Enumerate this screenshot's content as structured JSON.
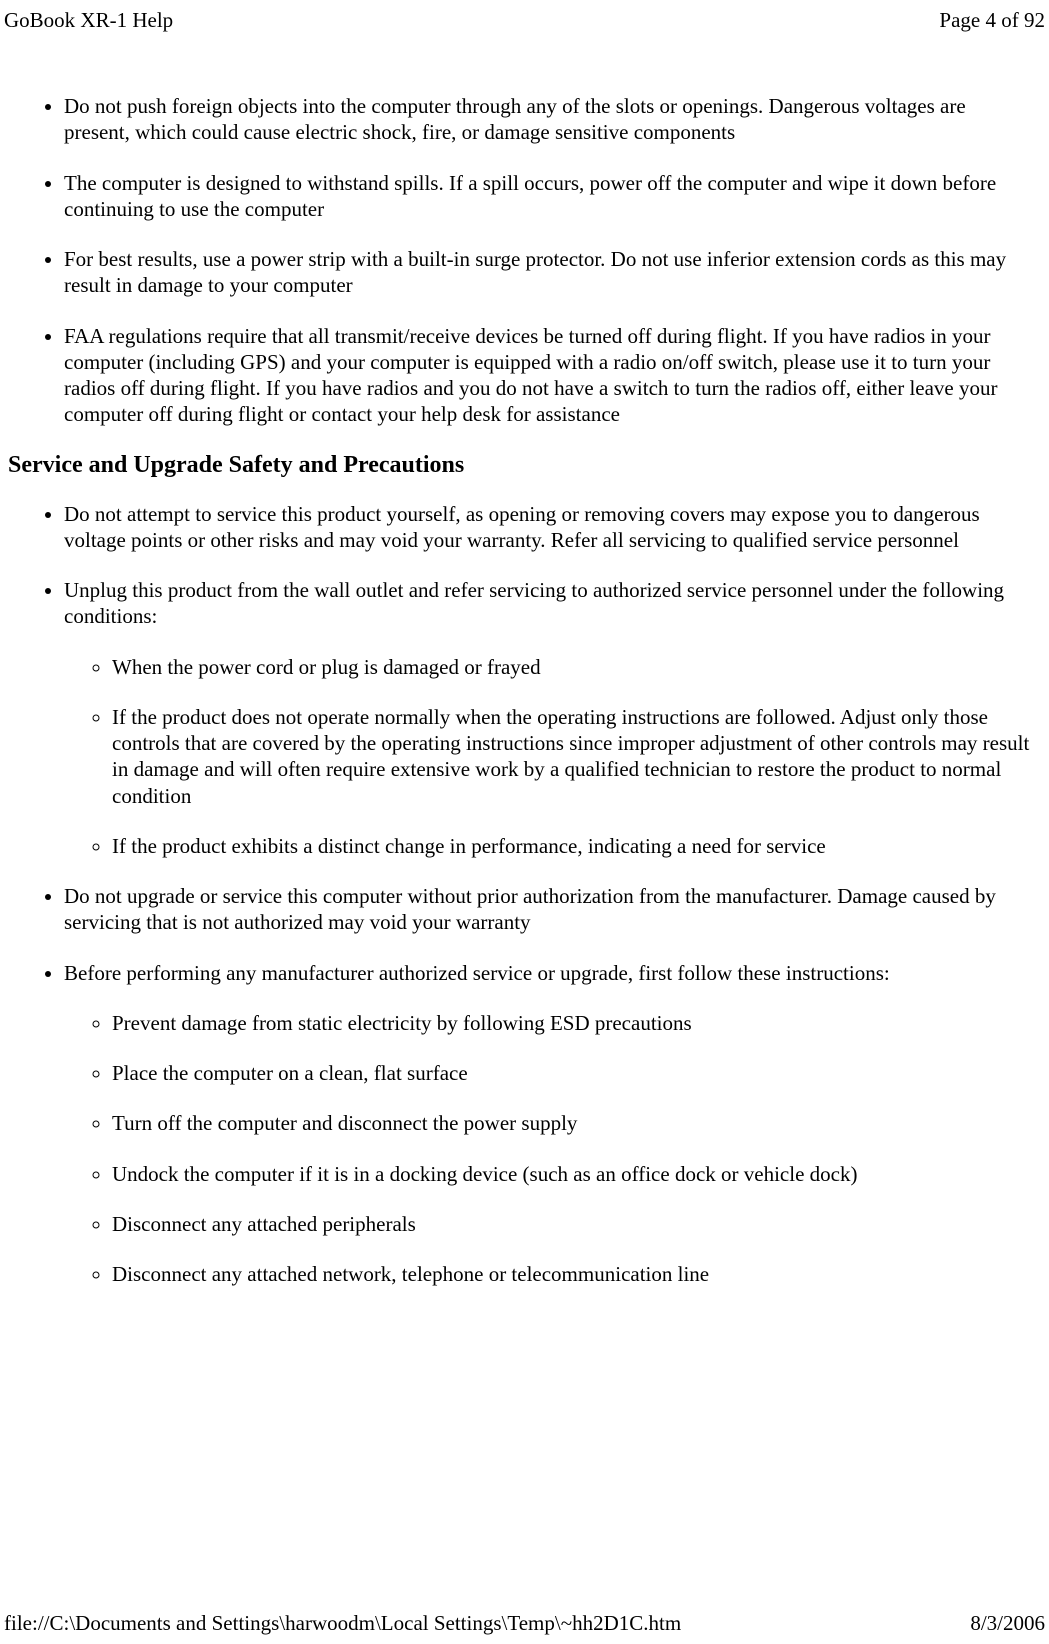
{
  "header": {
    "title": "GoBook XR-1 Help",
    "page_indicator": "Page 4 of 92"
  },
  "section1": {
    "items": [
      "Do not push foreign objects into the computer through any of the slots or openings. Dangerous voltages are present, which could cause electric shock,  fire, or damage sensitive components",
      "The computer is designed to withstand spills. If a spill occurs, power off the computer and wipe it down before continuing to use the computer",
      "For best results, use a power strip with a built-in surge protector. Do not use inferior extension cords as this may result in damage to your computer",
      "FAA regulations require that all transmit/receive devices be turned off during flight.  If you have radios in your computer (including GPS) and your computer is equipped with a radio on/off switch, please use it to turn your radios off during flight.  If you have radios and you do not have a switch to turn the radios off, either leave your computer off during flight or contact your help desk for assistance"
    ]
  },
  "section2": {
    "heading": "Service and Upgrade Safety and Precautions",
    "item1": "Do not attempt to service this product yourself, as opening or removing covers may expose you to dangerous voltage points or other risks and may void your warranty. Refer all servicing to qualified service personnel",
    "item2": "Unplug this product from the wall outlet and refer servicing to authorized service personnel under the following conditions:",
    "item2_sub": [
      "When the power cord or plug is damaged or frayed",
      "If the product does not operate normally when the operating instructions are followed. Adjust only those controls that are covered by the operating instructions since improper adjustment of other controls may result in damage and will often require extensive work by a qualified technician to restore the product to normal condition",
      "If the product exhibits a distinct change in performance, indicating a need for service"
    ],
    "item3": "Do not upgrade or service this computer without prior authorization from the manufacturer. Damage caused by servicing that is not authorized may void your warranty",
    "item4": "Before performing any manufacturer authorized service or upgrade, first follow these instructions:",
    "item4_sub": [
      "Prevent damage from static electricity by following ESD precautions",
      "Place the computer on a clean, flat surface",
      "Turn off the computer and disconnect the power supply",
      "Undock the computer if it is in a docking device (such as an office dock or vehicle dock)",
      "Disconnect any attached peripherals",
      "Disconnect any attached network, telephone or telecommunication line"
    ]
  },
  "footer": {
    "path": "file://C:\\Documents and Settings\\harwoodm\\Local Settings\\Temp\\~hh2D1C.htm",
    "date": "8/3/2006"
  }
}
